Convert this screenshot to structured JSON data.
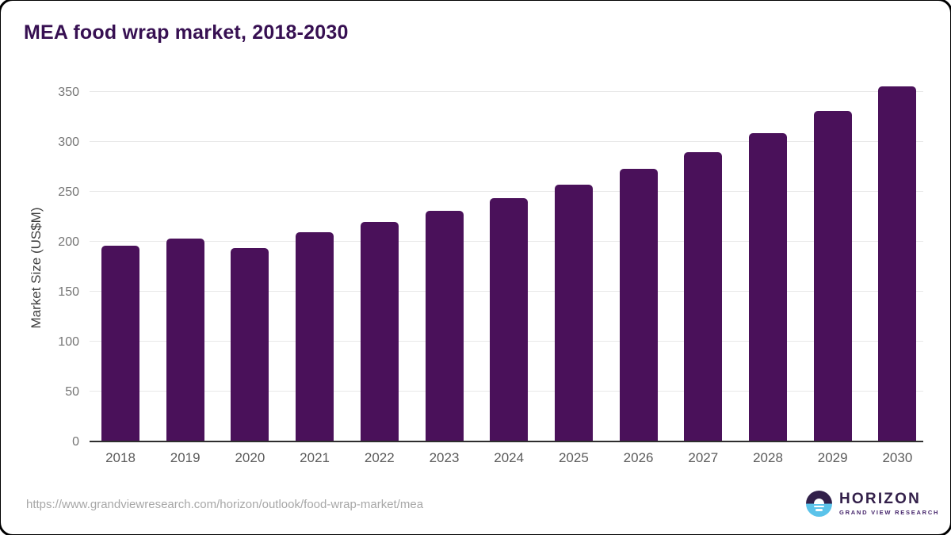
{
  "header": {
    "title": "MEA food wrap market, 2018-2030"
  },
  "chart_data": {
    "type": "bar",
    "title": "MEA food wrap market, 2018-2030",
    "categories": [
      "2018",
      "2019",
      "2020",
      "2021",
      "2022",
      "2023",
      "2024",
      "2025",
      "2026",
      "2027",
      "2028",
      "2029",
      "2030"
    ],
    "values": [
      195,
      202,
      193,
      209,
      219,
      230,
      243,
      256,
      272,
      289,
      308,
      330,
      355
    ],
    "xlabel": "",
    "ylabel": "Market Size (US$M)",
    "ylim": [
      0,
      350
    ],
    "yticks": [
      0,
      50,
      100,
      150,
      200,
      250,
      300,
      350
    ],
    "grid": "horizontal",
    "legend_position": "none",
    "bar_color": "#4a115a"
  },
  "palette": {
    "bar": "#4a115a",
    "title_text": "#371052",
    "gridline": "#e8e8e8",
    "axis_line": "#2e2e2e",
    "y_tick_text": "#757575",
    "x_tick_text": "#5c5c5c",
    "source_text": "#a7a7a7",
    "logo_dark_purple": "#32204a",
    "logo_light_blue": "#5bc3ea"
  },
  "footer": {
    "source_url": "https://www.grandviewresearch.com/horizon/outlook/food-wrap-market/mea",
    "logo": {
      "name": "HORIZON",
      "subtitle": "GRAND VIEW RESEARCH"
    }
  }
}
